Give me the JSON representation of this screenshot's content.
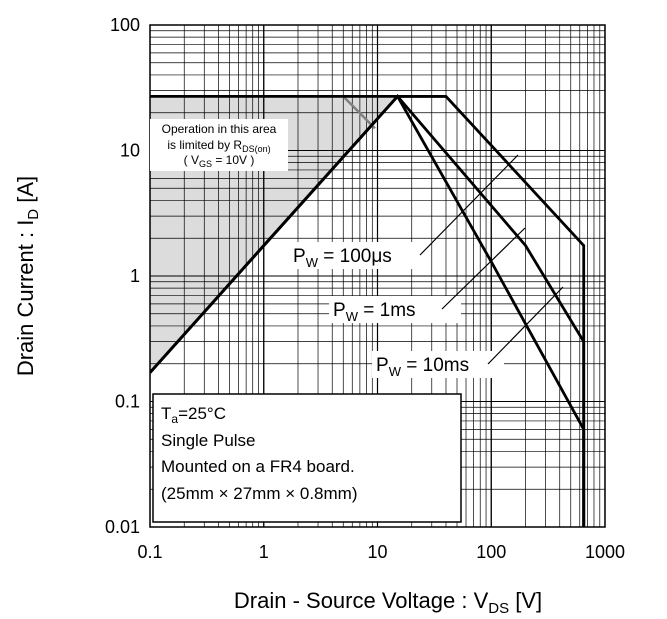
{
  "chart_data": {
    "type": "line",
    "x_scale": "log",
    "y_scale": "log",
    "xlim": [
      0.1,
      1000
    ],
    "ylim": [
      0.01,
      100
    ],
    "grid": true,
    "x_ticks": [
      "0.1",
      "1",
      "10",
      "100",
      "1000"
    ],
    "y_ticks": [
      "0.01",
      "0.1",
      "1",
      "10",
      "100"
    ],
    "xlabel": {
      "main": "Drain - Source Voltage : V",
      "sub": "DS",
      "unit": " [V]"
    },
    "ylabel": {
      "main": "Drain Current : I",
      "sub": "D",
      "unit": " [A]"
    },
    "limited_area": {
      "lines": [
        "Operation in this area",
        "is limited by R",
        "( V",
        " = 10V )"
      ],
      "subs": [
        "DS(on)",
        "GS"
      ],
      "boundary": [
        [
          0.1,
          0.17
        ],
        [
          15,
          27
        ]
      ],
      "current_limit": 27
    },
    "series": [
      {
        "label": {
          "main": "P",
          "sub": "W",
          "rest": " = 100μs"
        },
        "points": [
          [
            0.1,
            0.17
          ],
          [
            15,
            27
          ],
          [
            40,
            27
          ],
          [
            650,
            1.75
          ],
          [
            650,
            0.01
          ]
        ]
      },
      {
        "label": {
          "main": "P",
          "sub": "W",
          "rest": " = 1ms"
        },
        "points": [
          [
            0.1,
            0.17
          ],
          [
            15,
            27
          ],
          [
            200,
            1.75
          ],
          [
            650,
            0.3
          ],
          [
            650,
            0.01
          ]
        ]
      },
      {
        "label": {
          "main": "P",
          "sub": "W",
          "rest": " = 10ms"
        },
        "points": [
          [
            0.1,
            0.17
          ],
          [
            15,
            27
          ],
          [
            100,
            1.3
          ],
          [
            650,
            0.06
          ],
          [
            650,
            0.01
          ]
        ]
      }
    ],
    "conditions": {
      "line1_main": "T",
      "line1_sub": "a",
      "line1_rest": "=25°C",
      "line2": "Single Pulse",
      "line3": "Mounted on a FR4 board.",
      "line4": "(25mm × 27mm × 0.8mm)"
    }
  }
}
